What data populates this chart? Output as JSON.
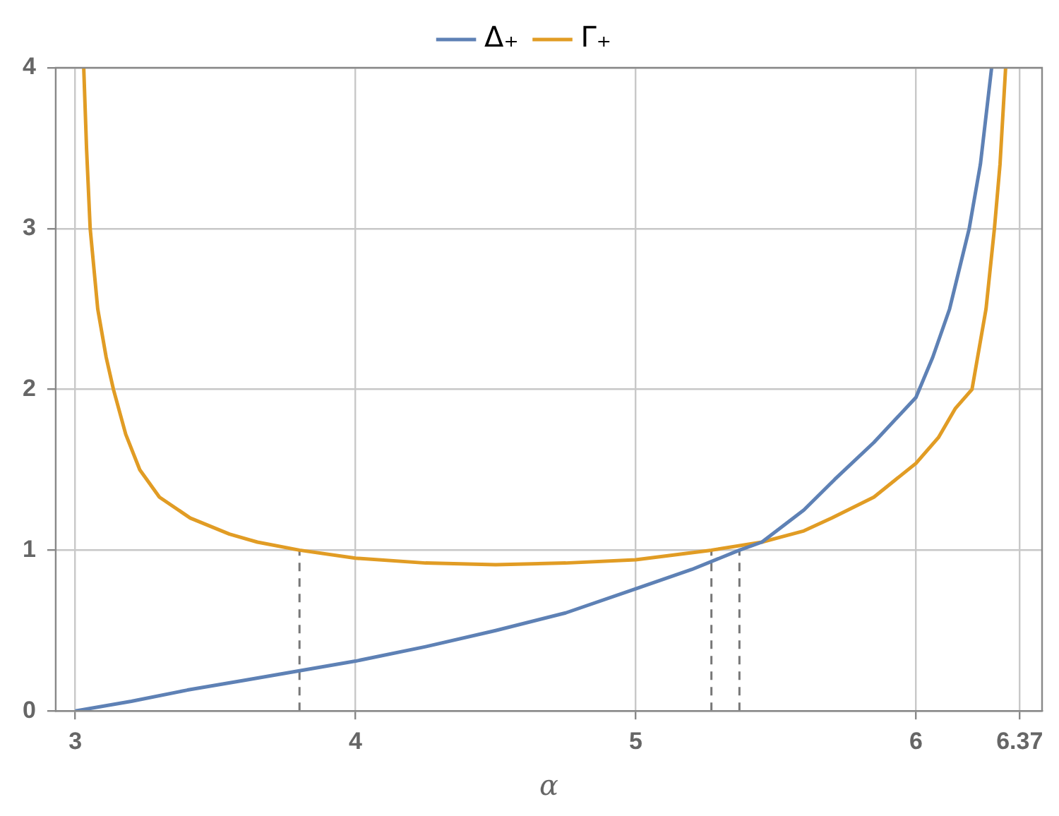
{
  "chart_data": {
    "type": "line",
    "xlabel": "α",
    "xlim": [
      2.93,
      6.45
    ],
    "xticks": [
      3,
      4,
      5,
      6,
      6.37
    ],
    "ylim": [
      0,
      4
    ],
    "yticks": [
      0,
      1,
      2,
      3,
      4
    ],
    "grid": true,
    "legend": "top",
    "marker": "none",
    "line_style": "solid",
    "series": [
      {
        "name": "Δ₊",
        "color": "#5e81b5",
        "x": [
          3,
          3.2,
          3.4,
          3.6,
          3.8,
          4,
          4.25,
          4.5,
          4.75,
          5,
          5.2,
          5.37,
          5.45,
          5.6,
          5.71,
          5.85,
          6,
          6.06,
          6.12,
          6.19,
          6.23,
          6.27
        ],
        "values": [
          0,
          0.06,
          0.13,
          0.19,
          0.25,
          0.31,
          0.4,
          0.5,
          0.61,
          0.76,
          0.88,
          1.0,
          1.05,
          1.25,
          1.44,
          1.67,
          1.95,
          2.2,
          2.5,
          3.0,
          3.4,
          4.0
        ]
      },
      {
        "name": "Γ₊",
        "color": "#e19c24",
        "x": [
          3.03,
          3.04,
          3.053,
          3.08,
          3.11,
          3.136,
          3.18,
          3.23,
          3.3,
          3.41,
          3.55,
          3.65,
          3.8,
          4,
          4.25,
          4.5,
          4.75,
          5,
          5.27,
          5.45,
          5.6,
          5.7,
          5.85,
          6,
          6.08,
          6.14,
          6.2,
          6.25,
          6.28,
          6.3,
          6.32
        ],
        "values": [
          4,
          3.5,
          3,
          2.5,
          2.2,
          2,
          1.72,
          1.5,
          1.33,
          1.2,
          1.1,
          1.05,
          1.0,
          0.95,
          0.92,
          0.91,
          0.92,
          0.94,
          1.0,
          1.05,
          1.12,
          1.2,
          1.33,
          1.54,
          1.7,
          1.88,
          2.0,
          2.5,
          3.0,
          3.4,
          4.0
        ]
      },
      {
        "color": "#777777",
        "line_style": "dashed",
        "x": [
          3.8,
          3.8
        ],
        "values": [
          0,
          1
        ]
      },
      {
        "color": "#777777",
        "line_style": "dashed",
        "x": [
          5.27,
          5.27
        ],
        "values": [
          0,
          1
        ]
      },
      {
        "color": "#777777",
        "line_style": "dashed",
        "x": [
          5.37,
          5.37
        ],
        "values": [
          0,
          1
        ]
      }
    ]
  }
}
